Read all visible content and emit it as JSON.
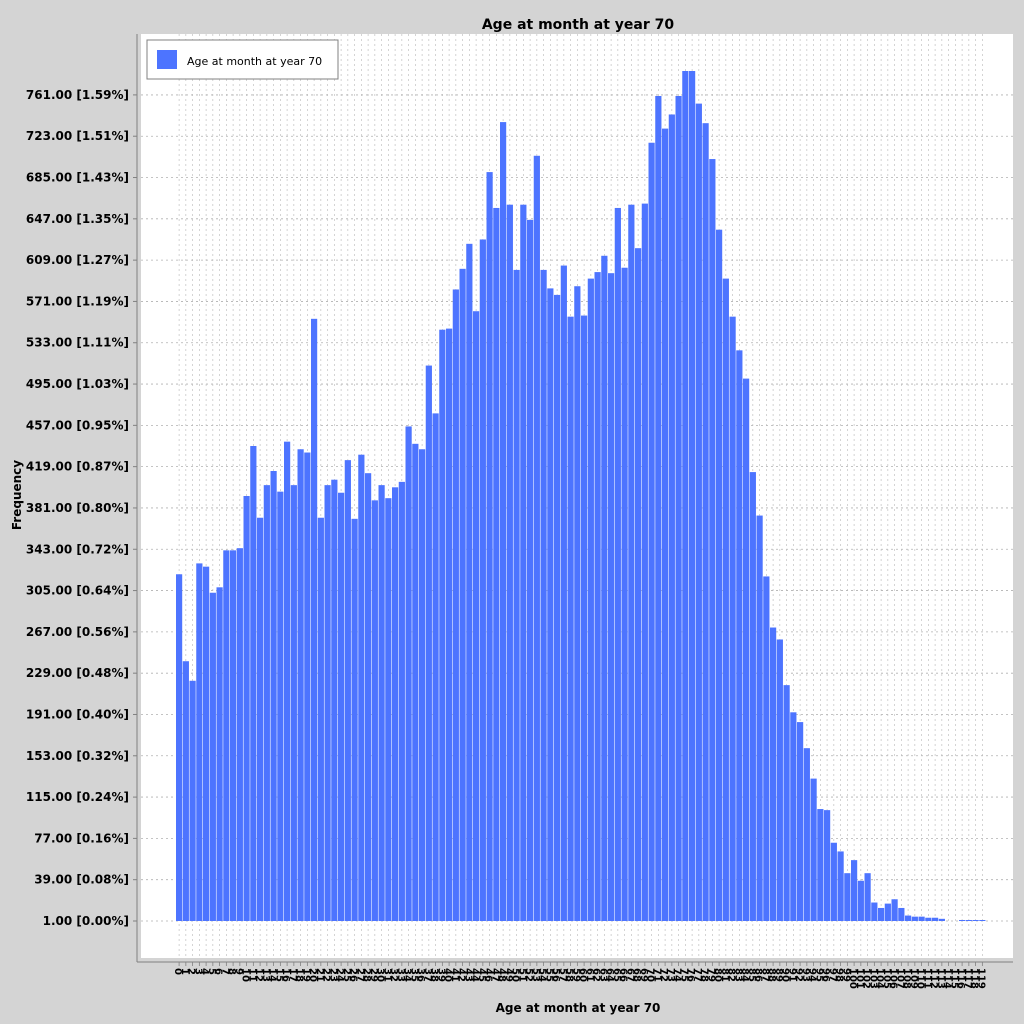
{
  "chart_data": {
    "type": "bar",
    "title": "Age at month at year 70",
    "xlabel": "Age at month at year 70",
    "ylabel": "Frequency",
    "legend": {
      "entries": [
        "Age at month at year 70"
      ],
      "placement": "top-left"
    },
    "grid": true,
    "bar_color": "#4d74ff",
    "ylim": [
      1,
      783
    ],
    "y_ticks": [
      {
        "value": 1,
        "label": "1.00 [0.00%]"
      },
      {
        "value": 39,
        "label": "39.00 [0.08%]"
      },
      {
        "value": 77,
        "label": "77.00 [0.16%]"
      },
      {
        "value": 115,
        "label": "115.00 [0.24%]"
      },
      {
        "value": 153,
        "label": "153.00 [0.32%]"
      },
      {
        "value": 191,
        "label": "191.00 [0.40%]"
      },
      {
        "value": 229,
        "label": "229.00 [0.48%]"
      },
      {
        "value": 267,
        "label": "267.00 [0.56%]"
      },
      {
        "value": 305,
        "label": "305.00 [0.64%]"
      },
      {
        "value": 343,
        "label": "343.00 [0.72%]"
      },
      {
        "value": 381,
        "label": "381.00 [0.80%]"
      },
      {
        "value": 419,
        "label": "419.00 [0.87%]"
      },
      {
        "value": 457,
        "label": "457.00 [0.95%]"
      },
      {
        "value": 495,
        "label": "495.00 [1.03%]"
      },
      {
        "value": 533,
        "label": "533.00 [1.11%]"
      },
      {
        "value": 571,
        "label": "571.00 [1.19%]"
      },
      {
        "value": 609,
        "label": "609.00 [1.27%]"
      },
      {
        "value": 647,
        "label": "647.00 [1.35%]"
      },
      {
        "value": 685,
        "label": "685.00 [1.43%]"
      },
      {
        "value": 723,
        "label": "723.00 [1.51%]"
      },
      {
        "value": 761,
        "label": "761.00 [1.59%]"
      }
    ],
    "categories": [
      "0",
      "1",
      "2",
      "3",
      "4",
      "5",
      "6",
      "7",
      "8",
      "9",
      "10",
      "11",
      "12",
      "13",
      "14",
      "15",
      "16",
      "17",
      "18",
      "19",
      "20",
      "21",
      "22",
      "23",
      "24",
      "25",
      "26",
      "27",
      "28",
      "29",
      "30",
      "31",
      "32",
      "33",
      "34",
      "35",
      "36",
      "37",
      "38",
      "39",
      "40",
      "41",
      "42",
      "43",
      "44",
      "45",
      "46",
      "47",
      "48",
      "49",
      "50",
      "51",
      "52",
      "53",
      "54",
      "55",
      "56",
      "57",
      "58",
      "59",
      "60",
      "61",
      "62",
      "63",
      "64",
      "65",
      "66",
      "67",
      "68",
      "69",
      "70",
      "71",
      "72",
      "73",
      "74",
      "75",
      "76",
      "77",
      "78",
      "79",
      "80",
      "81",
      "82",
      "83",
      "84",
      "85",
      "86",
      "87",
      "88",
      "89",
      "90",
      "91",
      "92",
      "93",
      "94",
      "95",
      "96",
      "97",
      "98",
      "99",
      "100",
      "101",
      "102",
      "103",
      "104",
      "105",
      "106",
      "107",
      "108",
      "109",
      "110",
      "111",
      "112",
      "113",
      "114",
      "115",
      "116",
      "117",
      "118",
      "119"
    ],
    "series": [
      {
        "name": "Age at month at year 70",
        "values": [
          320,
          240,
          222,
          330,
          327,
          303,
          308,
          342,
          342,
          344,
          392,
          438,
          372,
          402,
          415,
          396,
          442,
          402,
          435,
          432,
          555,
          372,
          402,
          407,
          395,
          425,
          371,
          430,
          413,
          388,
          402,
          390,
          400,
          405,
          456,
          440,
          435,
          512,
          468,
          545,
          546,
          582,
          601,
          624,
          562,
          628,
          690,
          657,
          736,
          660,
          600,
          660,
          646,
          705,
          600,
          583,
          577,
          604,
          557,
          585,
          558,
          592,
          598,
          613,
          597,
          657,
          602,
          660,
          620,
          661,
          717,
          760,
          730,
          743,
          760,
          783,
          783,
          753,
          735,
          702,
          637,
          592,
          557,
          526,
          500,
          414,
          374,
          318,
          271,
          260,
          218,
          193,
          184,
          160,
          132,
          104,
          103,
          73,
          65,
          45,
          57,
          38,
          45,
          18,
          13,
          17,
          21,
          13,
          6,
          5,
          5,
          4,
          4,
          3,
          0,
          0,
          1,
          1,
          1,
          1
        ]
      }
    ]
  }
}
